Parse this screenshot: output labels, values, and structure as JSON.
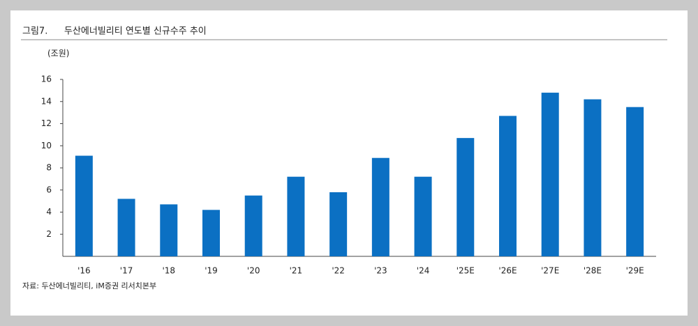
{
  "chart_data": {
    "type": "bar",
    "figure_label": "그림7.",
    "title": "두산에너빌리티 연도별 신규수주 추이",
    "ylabel": "(조원)",
    "source": "자료: 두산에너빌리티, iM증권 리서치본부",
    "categories": [
      "'16",
      "'17",
      "'18",
      "'19",
      "'20",
      "'21",
      "'22",
      "'23",
      "'24",
      "'25E",
      "'26E",
      "'27E",
      "'28E",
      "'29E"
    ],
    "values": [
      9.1,
      5.2,
      4.7,
      4.2,
      5.5,
      7.2,
      5.8,
      8.9,
      7.2,
      10.7,
      12.7,
      14.8,
      14.2,
      13.5
    ],
    "color": "#0b70c3",
    "ylim": [
      0,
      16
    ],
    "yticks": [
      2,
      4,
      6,
      8,
      10,
      12,
      14,
      16
    ],
    "grid": false
  }
}
